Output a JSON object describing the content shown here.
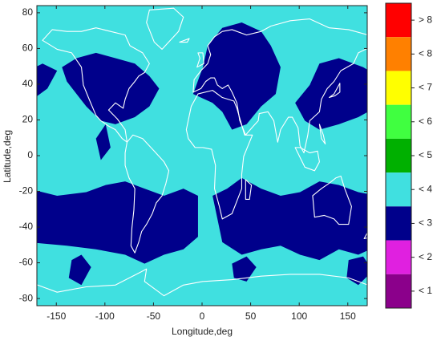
{
  "chart_data": {
    "type": "map",
    "x_label": "Longitude,deg",
    "y_label": "Latitude,deg",
    "xlim": [
      -170,
      170
    ],
    "xticks": [
      -150,
      -100,
      -50,
      0,
      50,
      100,
      150
    ],
    "ylim": [
      -84,
      84
    ],
    "yticks": [
      -80,
      -60,
      -40,
      -20,
      0,
      20,
      40,
      60,
      80
    ],
    "background_color": "#40e0e0",
    "colorbar": {
      "labels": [
        "> 8",
        "< 8",
        "< 7",
        "< 6",
        "< 5",
        "< 4",
        "< 3",
        "< 2",
        "< 1"
      ],
      "colors": [
        "#ff0000",
        "#ff8000",
        "#ffff00",
        "#40ff40",
        "#00b000",
        "#40e0e0",
        "#00008b",
        "#e020e0",
        "#8b008b"
      ]
    }
  }
}
